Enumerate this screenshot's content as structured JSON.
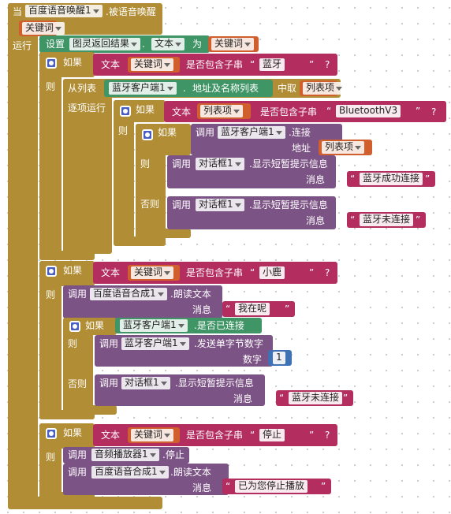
{
  "event": {
    "when": "当",
    "component": "百度语音唤醒1",
    "name": ".被语音唤醒",
    "param": "关键词",
    "run": "运行"
  },
  "labels": {
    "if": "如果",
    "then": "则",
    "else": "否则",
    "text": "文本",
    "contains": "是否包含子串",
    "question": "?",
    "call": "调用",
    "message": "消息",
    "quote_open": "“",
    "quote_close": "”",
    "set": "设置",
    "to": "为",
    "dot": "."
  },
  "set_block": {
    "component": "图灵返回结果",
    "property": "文本",
    "value": "关键词"
  },
  "if1": {
    "var": "关键词",
    "substring": "蓝牙"
  },
  "foreach": {
    "from_list": "从列表",
    "component": "蓝牙客户端1",
    "property": "地址及名称列表",
    "take": "中取",
    "item": "列表项",
    "do": "逐项运行"
  },
  "if2": {
    "var": "列表项",
    "substring": "BluetoothV3"
  },
  "if3": {
    "component": "蓝牙客户端1",
    "method": ".连接",
    "arg": "地址",
    "value": "列表项"
  },
  "toast1": {
    "component": "对话框1",
    "method": ".显示短暂提示信息",
    "message": "蓝牙成功连接"
  },
  "toast2": {
    "component": "对话框1",
    "method": ".显示短暂提示信息",
    "message": "蓝牙未连接"
  },
  "if4": {
    "var": "关键词",
    "substring": "小鹿"
  },
  "speak1": {
    "component": "百度语音合成1",
    "method": ".朗读文本",
    "message": "我在呢"
  },
  "if5": {
    "component": "蓝牙客户端1",
    "property": ".是否已连接"
  },
  "send": {
    "component": "蓝牙客户端1",
    "method": ".发送单字节数字",
    "arg": "数字",
    "value": 1
  },
  "toast3": {
    "component": "对话框1",
    "method": ".显示短暂提示信息",
    "message": "蓝牙未连接"
  },
  "if6": {
    "var": "关键词",
    "substring": "停止"
  },
  "stop": {
    "component": "音频播放器1",
    "method": ".停止"
  },
  "speak2": {
    "component": "百度语音合成1",
    "method": ".朗读文本",
    "message": "已为您停止播放"
  }
}
